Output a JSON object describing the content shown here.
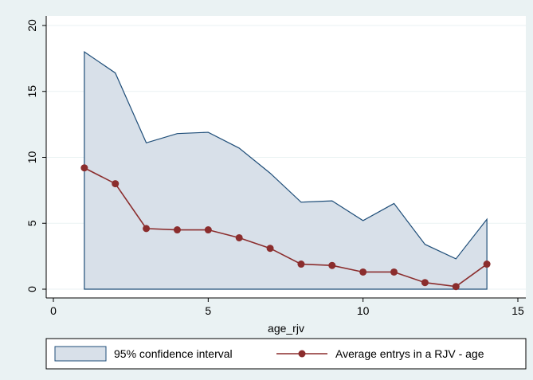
{
  "chart_data": {
    "type": "area",
    "title": "",
    "xlabel": "age_rjv",
    "ylabel": "",
    "xlim": [
      0,
      15
    ],
    "ylim": [
      0,
      20
    ],
    "xticks": [
      0,
      5,
      10,
      15
    ],
    "yticks": [
      0,
      5,
      10,
      15,
      20
    ],
    "grid": true,
    "legend_position": "bottom",
    "series": [
      {
        "name": "95% confidence interval",
        "kind": "band",
        "color": "#d8e0e9",
        "edge_color": "#1f4e79",
        "x": [
          1,
          2,
          3,
          4,
          5,
          6,
          7,
          8,
          9,
          10,
          11,
          12,
          13,
          14
        ],
        "lower": [
          0,
          0,
          0,
          0,
          0,
          0,
          0,
          0,
          0,
          0,
          0,
          0,
          0,
          0
        ],
        "upper": [
          18.0,
          16.4,
          11.1,
          11.8,
          11.9,
          10.7,
          8.8,
          6.6,
          6.7,
          5.2,
          6.5,
          3.4,
          2.3,
          5.3
        ]
      },
      {
        "name": "Average entrys in a RJV - age",
        "kind": "line",
        "color": "#8b2d2d",
        "x": [
          1,
          2,
          3,
          4,
          5,
          6,
          7,
          8,
          9,
          10,
          11,
          12,
          13,
          14
        ],
        "values": [
          9.2,
          8.0,
          4.6,
          4.5,
          4.5,
          3.9,
          3.1,
          1.9,
          1.8,
          1.3,
          1.3,
          0.5,
          0.2,
          1.9
        ]
      }
    ]
  }
}
